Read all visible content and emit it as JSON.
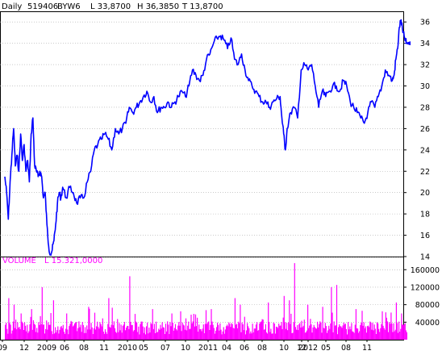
{
  "header": {
    "period": "Daily",
    "id": "519406",
    "code": "BYW6",
    "low": "L  33,8700",
    "high": "H  36,3850",
    "third": "T  13,8700"
  },
  "volume_header": {
    "label": "VOLUME",
    "value": "L  15.321,0000"
  },
  "colors": {
    "price": "#0000ff",
    "volume": "#ff00ff",
    "grid": "#aaaaaa",
    "frame": "#000000"
  },
  "chart_data": [
    {
      "type": "line",
      "ylim": [
        14,
        37
      ],
      "yticks": [
        "36",
        "34",
        "32",
        "30",
        "28",
        "26",
        "24",
        "22",
        "20",
        "18",
        "16",
        "14"
      ],
      "x_labels": [
        "09",
        "12",
        "2009",
        "06",
        "08",
        "11",
        "2010",
        "05",
        "07",
        "10",
        "2011",
        "04",
        "06",
        "08",
        "10",
        "12",
        "2012",
        "05",
        "08",
        "11"
      ],
      "series": [
        {
          "x": [
            0,
            2,
            4,
            6,
            8,
            10,
            12,
            14,
            16,
            18,
            20,
            22,
            24,
            26,
            28,
            30,
            32,
            34,
            36,
            38,
            40,
            42,
            44,
            46,
            48,
            50,
            52,
            54,
            56,
            58,
            60,
            62,
            64,
            66,
            70,
            74,
            78,
            82,
            86,
            90,
            94,
            98,
            102,
            106,
            110,
            114,
            118,
            122,
            126,
            130,
            134,
            138,
            142,
            146,
            150,
            154,
            158,
            162,
            166,
            170,
            174,
            178,
            182,
            186,
            190,
            194,
            198,
            202,
            206,
            210,
            214,
            218,
            222,
            226,
            230,
            234,
            238,
            242,
            246,
            250,
            254,
            258,
            262,
            266,
            270,
            274,
            278,
            282,
            286,
            290,
            294,
            298,
            302,
            306,
            310,
            314,
            316,
            318,
            320,
            322,
            326,
            330,
            334,
            338,
            342,
            346,
            350,
            354,
            358,
            362,
            366,
            370,
            374,
            378,
            382,
            386,
            390,
            394,
            398,
            402,
            406,
            410,
            414,
            418,
            422,
            426,
            430,
            434,
            438,
            442,
            444,
            446,
            448,
            450,
            452,
            454,
            456,
            458
          ],
          "values": [
            21.5,
            20.0,
            17.5,
            21.0,
            23.5,
            26.0,
            22.5,
            23.5,
            22.0,
            25.5,
            23.0,
            24.5,
            22.0,
            23.0,
            21.0,
            25.5,
            27.0,
            22.5,
            22.0,
            21.5,
            22.0,
            21.5,
            19.5,
            20.0,
            17.0,
            15.0,
            14.2,
            14.6,
            15.5,
            17.0,
            19.0,
            20.0,
            19.5,
            20.5,
            19.5,
            20.5,
            20.0,
            19.0,
            19.5,
            19.5,
            21.0,
            22.0,
            24.0,
            24.5,
            25.0,
            25.5,
            25.0,
            24.0,
            26.0,
            25.5,
            26.0,
            26.5,
            28.0,
            27.5,
            28.0,
            28.5,
            29.0,
            29.5,
            28.5,
            29.0,
            27.5,
            28.0,
            28.0,
            28.5,
            28.0,
            28.5,
            29.0,
            29.5,
            29.0,
            30.0,
            31.5,
            31.0,
            30.5,
            31.0,
            32.5,
            33.0,
            34.0,
            34.5,
            34.7,
            34.3,
            33.5,
            34.5,
            32.5,
            32.0,
            33.0,
            31.5,
            30.5,
            30.0,
            29.5,
            29.0,
            28.5,
            28.5,
            28.0,
            28.5,
            28.8,
            29.0,
            27.0,
            25.5,
            24.0,
            26.0,
            27.5,
            28.0,
            27.0,
            31.5,
            32.0,
            31.5,
            32.0,
            30.0,
            28.0,
            29.5,
            29.0,
            29.5,
            30.0,
            30.0,
            29.5,
            30.5,
            30.0,
            28.5,
            28.0,
            27.5,
            27.0,
            26.5,
            27.5,
            28.5,
            28.0,
            29.0,
            30.0,
            31.5,
            31.0,
            30.5,
            31.0,
            32.5,
            33.5,
            35.5,
            36.2,
            35.0,
            34.5,
            34.0
          ]
        }
      ]
    },
    {
      "type": "bar",
      "ylim": [
        0,
        190000
      ],
      "yticks": [
        "160000",
        "120000",
        "80000",
        "40000"
      ],
      "spikes": [
        {
          "x": 4,
          "value": 95000
        },
        {
          "x": 10,
          "value": 80000
        },
        {
          "x": 18,
          "value": 60000
        },
        {
          "x": 30,
          "value": 70000
        },
        {
          "x": 42,
          "value": 120000
        },
        {
          "x": 55,
          "value": 90000
        },
        {
          "x": 70,
          "value": 60000
        },
        {
          "x": 95,
          "value": 75000
        },
        {
          "x": 118,
          "value": 95000
        },
        {
          "x": 142,
          "value": 145000
        },
        {
          "x": 168,
          "value": 70000
        },
        {
          "x": 200,
          "value": 65000
        },
        {
          "x": 235,
          "value": 70000
        },
        {
          "x": 262,
          "value": 95000
        },
        {
          "x": 268,
          "value": 80000
        },
        {
          "x": 300,
          "value": 85000
        },
        {
          "x": 318,
          "value": 100000
        },
        {
          "x": 324,
          "value": 90000
        },
        {
          "x": 330,
          "value": 175000
        },
        {
          "x": 345,
          "value": 80000
        },
        {
          "x": 362,
          "value": 75000
        },
        {
          "x": 372,
          "value": 120000
        },
        {
          "x": 378,
          "value": 125000
        },
        {
          "x": 400,
          "value": 70000
        },
        {
          "x": 430,
          "value": 65000
        },
        {
          "x": 446,
          "value": 85000
        },
        {
          "x": 452,
          "value": 60000
        }
      ]
    }
  ]
}
